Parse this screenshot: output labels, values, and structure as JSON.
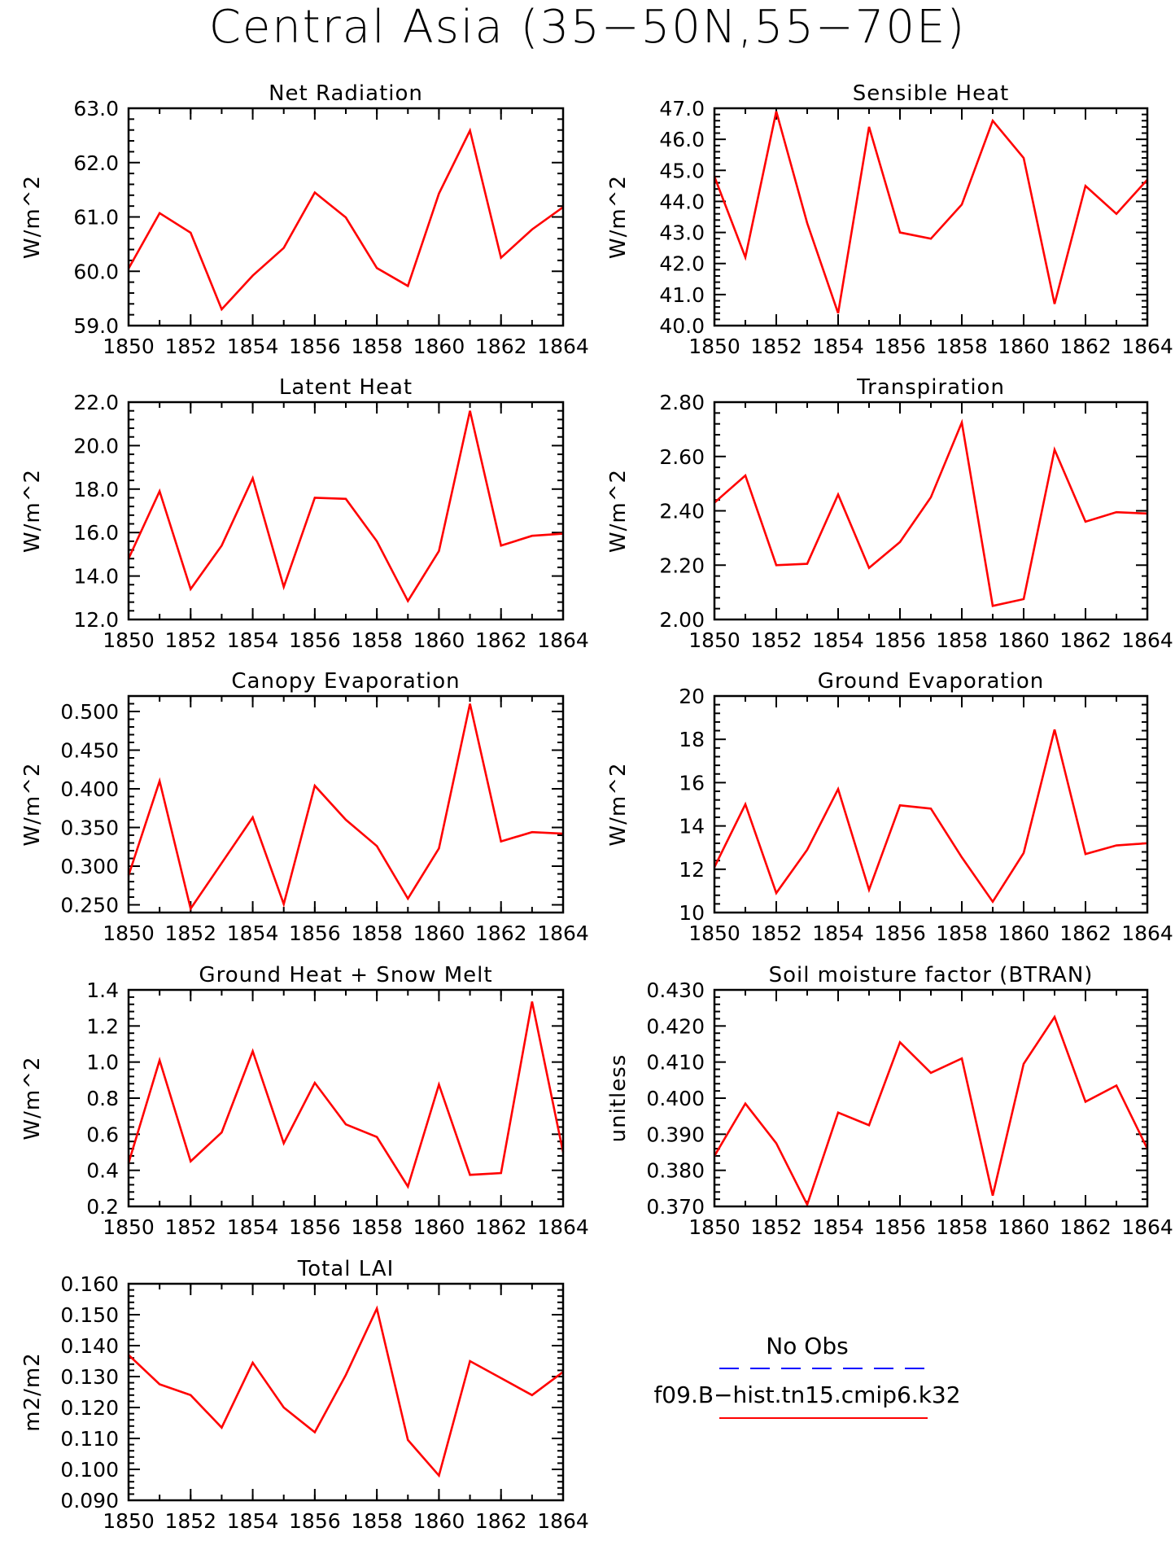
{
  "figure": {
    "title": "Central Asia (35−50N,55−70E)"
  },
  "legend": {
    "entries": [
      {
        "label": "No Obs",
        "color": "#0000ff",
        "dash": true
      },
      {
        "label": "f09.B−hist.tn15.cmip6.k32",
        "color": "#ff0000",
        "dash": false
      }
    ]
  },
  "chart_data": [
    {
      "type": "line",
      "title": "Net Radiation",
      "ylabel": "W/m^2",
      "xlim": [
        1850,
        1864
      ],
      "ylim": [
        59.0,
        63.0
      ],
      "xticks": [
        "1850",
        "1852",
        "1854",
        "1856",
        "1858",
        "1860",
        "1862",
        "1864"
      ],
      "yticks": [
        "59.0",
        "60.0",
        "61.0",
        "62.0",
        "63.0"
      ],
      "x": [
        1850,
        1851,
        1852,
        1853,
        1854,
        1855,
        1856,
        1857,
        1858,
        1859,
        1860,
        1861,
        1862,
        1863,
        1864
      ],
      "series": [
        {
          "color": "#ff0000",
          "values": [
            60.05,
            61.07,
            60.71,
            59.3,
            59.92,
            60.43,
            61.45,
            60.99,
            60.06,
            59.73,
            61.43,
            62.59,
            60.25,
            60.77,
            61.18
          ]
        }
      ]
    },
    {
      "type": "line",
      "title": "Sensible Heat",
      "ylabel": "W/m^2",
      "xlim": [
        1850,
        1864
      ],
      "ylim": [
        40.0,
        47.0
      ],
      "xticks": [
        "1850",
        "1852",
        "1854",
        "1856",
        "1858",
        "1860",
        "1862",
        "1864"
      ],
      "yticks": [
        "40.0",
        "41.0",
        "42.0",
        "43.0",
        "44.0",
        "45.0",
        "46.0",
        "47.0"
      ],
      "x": [
        1850,
        1851,
        1852,
        1853,
        1854,
        1855,
        1856,
        1857,
        1858,
        1859,
        1860,
        1861,
        1862,
        1863,
        1864
      ],
      "series": [
        {
          "color": "#ff0000",
          "values": [
            44.8,
            42.2,
            46.9,
            43.3,
            40.4,
            46.4,
            43.0,
            42.8,
            43.9,
            46.6,
            45.4,
            40.7,
            44.5,
            43.6,
            44.7
          ]
        }
      ]
    },
    {
      "type": "line",
      "title": "Latent Heat",
      "ylabel": "W/m^2",
      "xlim": [
        1850,
        1864
      ],
      "ylim": [
        12.0,
        22.0
      ],
      "xticks": [
        "1850",
        "1852",
        "1854",
        "1856",
        "1858",
        "1860",
        "1862",
        "1864"
      ],
      "yticks": [
        "12.0",
        "14.0",
        "16.0",
        "18.0",
        "20.0",
        "22.0"
      ],
      "x": [
        1850,
        1851,
        1852,
        1853,
        1854,
        1855,
        1856,
        1857,
        1858,
        1859,
        1860,
        1861,
        1862,
        1863,
        1864
      ],
      "series": [
        {
          "color": "#ff0000",
          "values": [
            14.8,
            17.9,
            13.4,
            15.4,
            18.5,
            13.5,
            17.6,
            17.55,
            15.6,
            12.85,
            15.15,
            21.6,
            15.4,
            15.85,
            15.95
          ]
        }
      ]
    },
    {
      "type": "line",
      "title": "Transpiration",
      "ylabel": "W/m^2",
      "xlim": [
        1850,
        1864
      ],
      "ylim": [
        2.0,
        2.8
      ],
      "xticks": [
        "1850",
        "1852",
        "1854",
        "1856",
        "1858",
        "1860",
        "1862",
        "1864"
      ],
      "yticks": [
        "2.00",
        "2.20",
        "2.40",
        "2.60",
        "2.80"
      ],
      "x": [
        1850,
        1851,
        1852,
        1853,
        1854,
        1855,
        1856,
        1857,
        1858,
        1859,
        1860,
        1861,
        1862,
        1863,
        1864
      ],
      "series": [
        {
          "color": "#ff0000",
          "values": [
            2.43,
            2.53,
            2.2,
            2.205,
            2.46,
            2.19,
            2.285,
            2.45,
            2.725,
            2.05,
            2.075,
            2.625,
            2.36,
            2.395,
            2.39
          ]
        }
      ]
    },
    {
      "type": "line",
      "title": "Canopy Evaporation",
      "ylabel": "W/m^2",
      "xlim": [
        1850,
        1864
      ],
      "ylim": [
        0.24,
        0.52
      ],
      "xticks": [
        "1850",
        "1852",
        "1854",
        "1856",
        "1858",
        "1860",
        "1862",
        "1864"
      ],
      "yticks": [
        "0.250",
        "0.300",
        "0.350",
        "0.400",
        "0.450",
        "0.500"
      ],
      "x": [
        1850,
        1851,
        1852,
        1853,
        1854,
        1855,
        1856,
        1857,
        1858,
        1859,
        1860,
        1861,
        1862,
        1863,
        1864
      ],
      "series": [
        {
          "color": "#ff0000",
          "values": [
            0.288,
            0.41,
            0.245,
            0.304,
            0.363,
            0.251,
            0.404,
            0.36,
            0.326,
            0.258,
            0.323,
            0.51,
            0.332,
            0.344,
            0.342
          ]
        }
      ]
    },
    {
      "type": "line",
      "title": "Ground Evaporation",
      "ylabel": "W/m^2",
      "xlim": [
        1850,
        1864
      ],
      "ylim": [
        10,
        20
      ],
      "xticks": [
        "1850",
        "1852",
        "1854",
        "1856",
        "1858",
        "1860",
        "1862",
        "1864"
      ],
      "yticks": [
        "10",
        "12",
        "14",
        "16",
        "18",
        "20"
      ],
      "x": [
        1850,
        1851,
        1852,
        1853,
        1854,
        1855,
        1856,
        1857,
        1858,
        1859,
        1860,
        1861,
        1862,
        1863,
        1864
      ],
      "series": [
        {
          "color": "#ff0000",
          "values": [
            12.1,
            15.0,
            10.9,
            12.9,
            15.7,
            11.05,
            14.95,
            14.8,
            12.55,
            10.5,
            12.75,
            18.45,
            12.7,
            13.1,
            13.2
          ]
        }
      ]
    },
    {
      "type": "line",
      "title": "Ground Heat + Snow Melt",
      "ylabel": "W/m^2",
      "xlim": [
        1850,
        1864
      ],
      "ylim": [
        0.2,
        1.4
      ],
      "xticks": [
        "1850",
        "1852",
        "1854",
        "1856",
        "1858",
        "1860",
        "1862",
        "1864"
      ],
      "yticks": [
        "0.2",
        "0.4",
        "0.6",
        "0.8",
        "1.0",
        "1.2",
        "1.4"
      ],
      "x": [
        1850,
        1851,
        1852,
        1853,
        1854,
        1855,
        1856,
        1857,
        1858,
        1859,
        1860,
        1861,
        1862,
        1863,
        1864
      ],
      "series": [
        {
          "color": "#ff0000",
          "values": [
            0.44,
            1.01,
            0.45,
            0.61,
            1.06,
            0.55,
            0.885,
            0.655,
            0.585,
            0.31,
            0.875,
            0.375,
            0.385,
            1.335,
            0.5
          ]
        }
      ]
    },
    {
      "type": "line",
      "title": "Soil moisture factor (BTRAN)",
      "ylabel": "unitless",
      "xlim": [
        1850,
        1864
      ],
      "ylim": [
        0.37,
        0.43
      ],
      "xticks": [
        "1850",
        "1852",
        "1854",
        "1856",
        "1858",
        "1860",
        "1862",
        "1864"
      ],
      "yticks": [
        "0.370",
        "0.380",
        "0.390",
        "0.400",
        "0.410",
        "0.420",
        "0.430"
      ],
      "x": [
        1850,
        1851,
        1852,
        1853,
        1854,
        1855,
        1856,
        1857,
        1858,
        1859,
        1860,
        1861,
        1862,
        1863,
        1864
      ],
      "series": [
        {
          "color": "#ff0000",
          "values": [
            0.384,
            0.3985,
            0.3875,
            0.3705,
            0.396,
            0.3925,
            0.4155,
            0.407,
            0.411,
            0.373,
            0.4095,
            0.4225,
            0.399,
            0.4035,
            0.386
          ]
        }
      ]
    },
    {
      "type": "line",
      "title": "Total LAI",
      "ylabel": "m2/m2",
      "xlim": [
        1850,
        1864
      ],
      "ylim": [
        0.09,
        0.16
      ],
      "xticks": [
        "1850",
        "1852",
        "1854",
        "1856",
        "1858",
        "1860",
        "1862",
        "1864"
      ],
      "yticks": [
        "0.090",
        "0.100",
        "0.110",
        "0.120",
        "0.130",
        "0.140",
        "0.150",
        "0.160"
      ],
      "x": [
        1850,
        1851,
        1852,
        1853,
        1854,
        1855,
        1856,
        1857,
        1858,
        1859,
        1860,
        1861,
        1862,
        1863,
        1864
      ],
      "series": [
        {
          "color": "#ff0000",
          "values": [
            0.137,
            0.1275,
            0.124,
            0.1135,
            0.1345,
            0.12,
            0.112,
            0.1305,
            0.152,
            0.1095,
            0.098,
            0.135,
            0.1295,
            0.124,
            0.1315
          ]
        }
      ]
    }
  ]
}
